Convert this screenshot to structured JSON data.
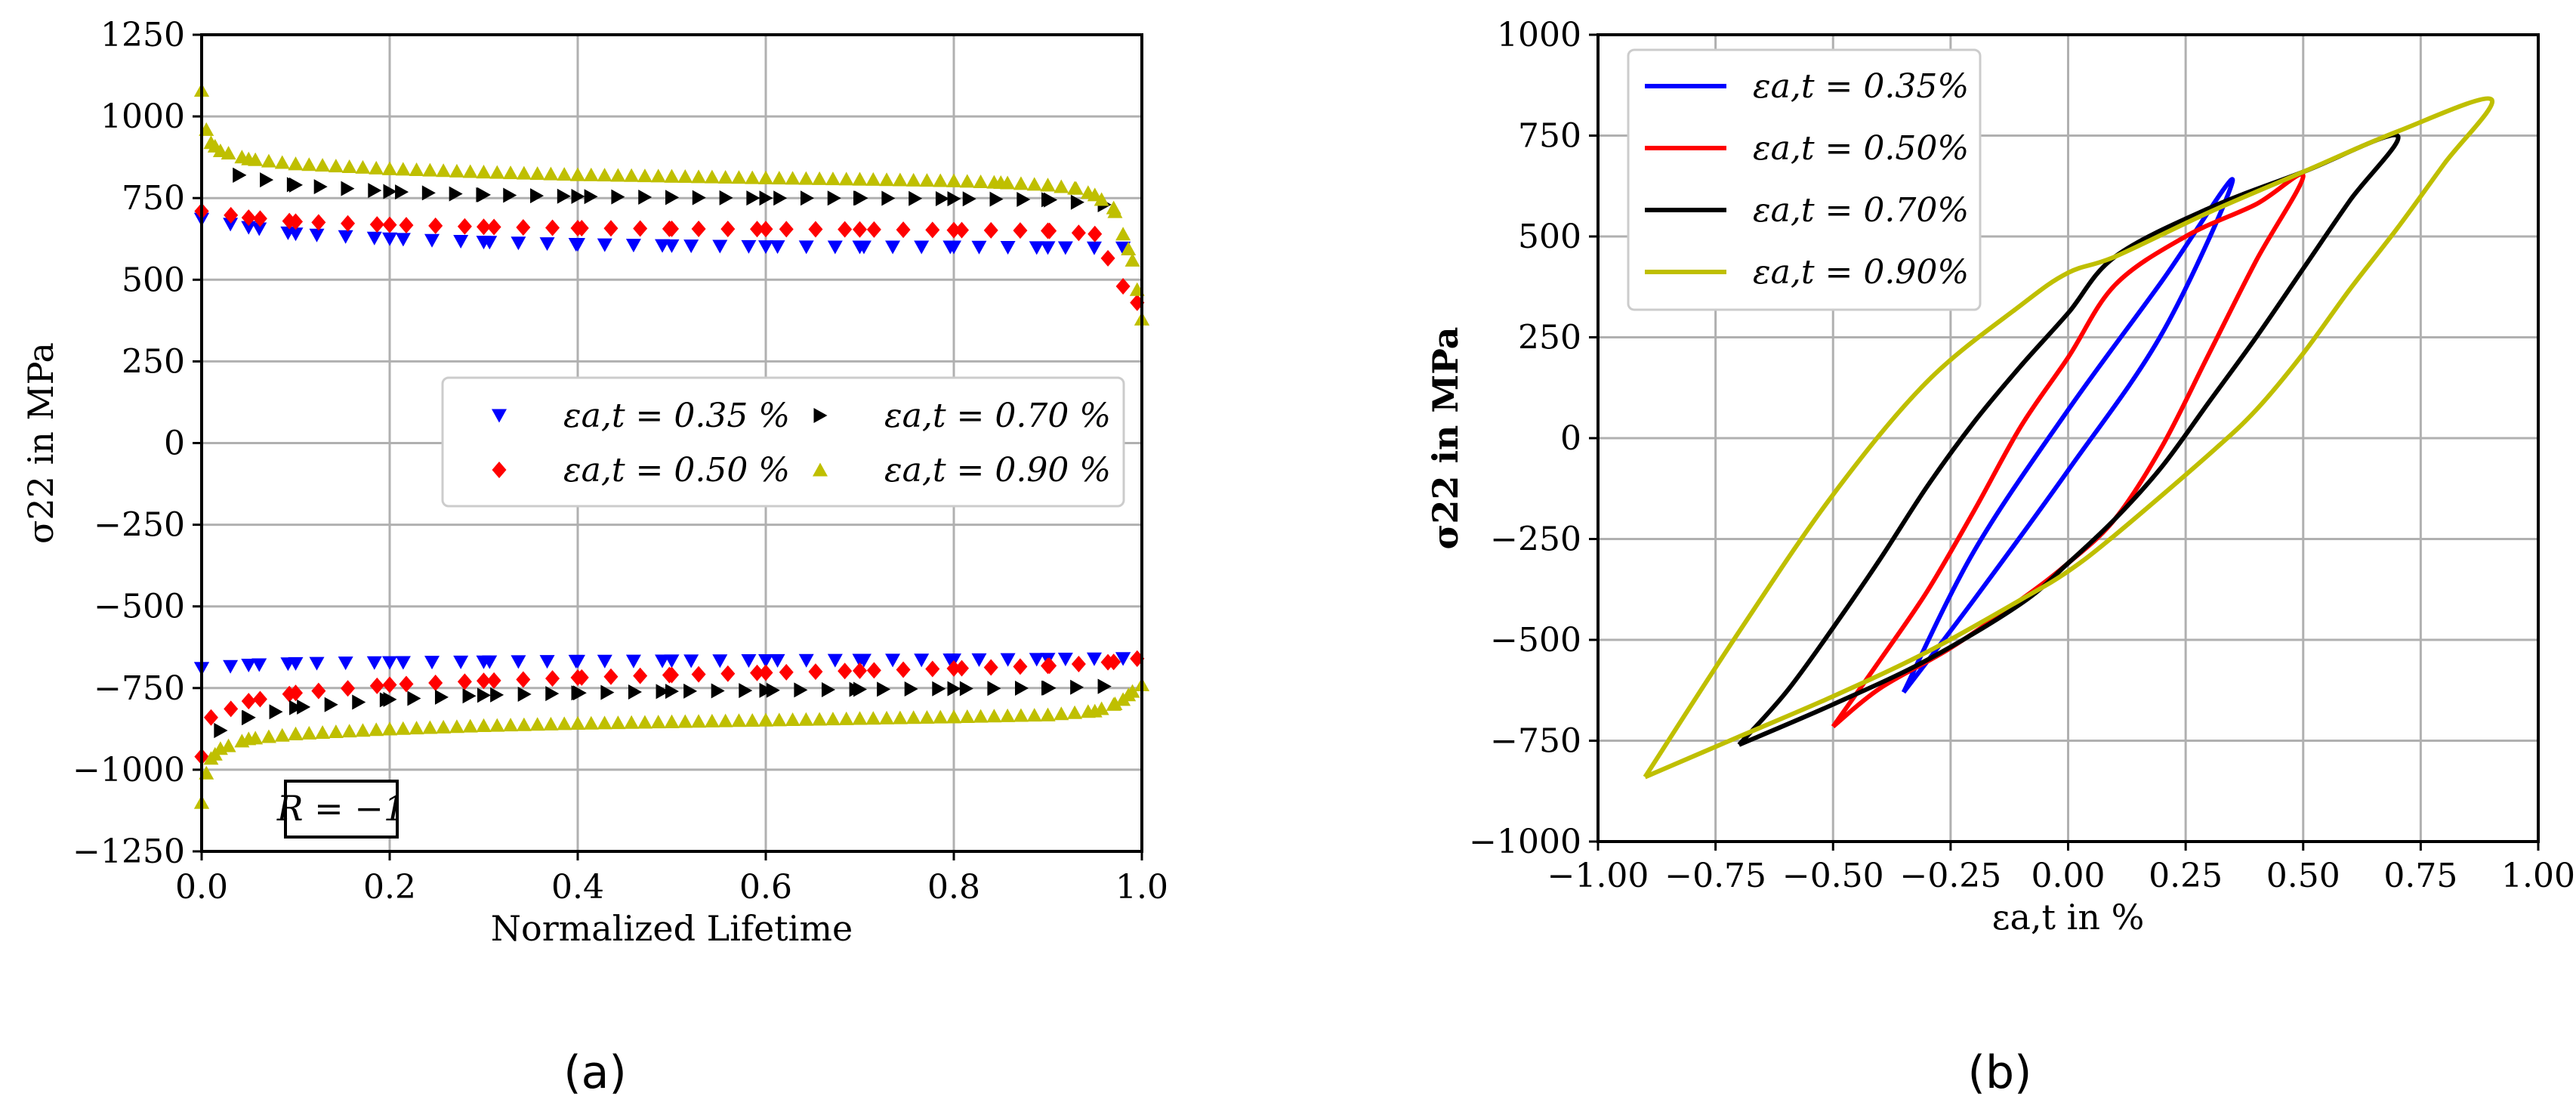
{
  "chart_data": [
    {
      "type": "scatter",
      "panel": "(a)",
      "xlabel": "Normalized Lifetime",
      "ylabel": "σ22 in MPa",
      "xlim": [
        0.0,
        1.0
      ],
      "ylim": [
        -1250,
        1250
      ],
      "xticks": [
        "0.0",
        "0.2",
        "0.4",
        "0.6",
        "0.8",
        "1.0"
      ],
      "yticks": [
        "1250",
        "1000",
        "750",
        "500",
        "250",
        "0",
        "−250",
        "−500",
        "−750",
        "−1000",
        "−1250"
      ],
      "xtick_values": [
        0.0,
        0.2,
        0.4,
        0.6,
        0.8,
        1.0
      ],
      "ytick_values": [
        1250,
        1000,
        750,
        500,
        250,
        0,
        -250,
        -500,
        -750,
        -1000,
        -1250
      ],
      "grid": true,
      "annotation": "R = −1",
      "legend_position": "center-right",
      "series": [
        {
          "name": "εa,t = 0.35 %",
          "color": "#0000ff",
          "marker": "triangle-down",
          "upper": [
            [
              0.0,
              685
            ],
            [
              0.05,
              660
            ],
            [
              0.1,
              640
            ],
            [
              0.2,
              625
            ],
            [
              0.3,
              615
            ],
            [
              0.4,
              608
            ],
            [
              0.5,
              604
            ],
            [
              0.6,
              601
            ],
            [
              0.7,
              600
            ],
            [
              0.8,
              600
            ],
            [
              0.9,
              598
            ],
            [
              0.98,
              597
            ]
          ],
          "lower": [
            [
              0.0,
              -690
            ],
            [
              0.05,
              -680
            ],
            [
              0.1,
              -675
            ],
            [
              0.2,
              -672
            ],
            [
              0.3,
              -670
            ],
            [
              0.4,
              -668
            ],
            [
              0.5,
              -667
            ],
            [
              0.6,
              -666
            ],
            [
              0.7,
              -665
            ],
            [
              0.8,
              -664
            ],
            [
              0.9,
              -662
            ],
            [
              0.98,
              -660
            ]
          ]
        },
        {
          "name": "εa,t = 0.50 %",
          "color": "#ff0000",
          "marker": "diamond",
          "upper": [
            [
              0.0,
              710
            ],
            [
              0.05,
              690
            ],
            [
              0.1,
              678
            ],
            [
              0.2,
              668
            ],
            [
              0.3,
              662
            ],
            [
              0.4,
              658
            ],
            [
              0.5,
              656
            ],
            [
              0.6,
              655
            ],
            [
              0.7,
              654
            ],
            [
              0.8,
              652
            ],
            [
              0.9,
              650
            ],
            [
              0.95,
              640
            ],
            [
              0.98,
              480
            ],
            [
              0.995,
              430
            ]
          ],
          "lower": [
            [
              0.0,
              -960
            ],
            [
              0.01,
              -840
            ],
            [
              0.05,
              -790
            ],
            [
              0.1,
              -765
            ],
            [
              0.2,
              -740
            ],
            [
              0.3,
              -728
            ],
            [
              0.4,
              -718
            ],
            [
              0.5,
              -710
            ],
            [
              0.6,
              -703
            ],
            [
              0.7,
              -697
            ],
            [
              0.8,
              -690
            ],
            [
              0.9,
              -682
            ],
            [
              0.97,
              -670
            ],
            [
              0.995,
              -660
            ]
          ]
        },
        {
          "name": "εa,t = 0.70 %",
          "color": "#000000",
          "marker": "triangle-right",
          "upper": [
            [
              0.04,
              820
            ],
            [
              0.1,
              790
            ],
            [
              0.2,
              770
            ],
            [
              0.3,
              760
            ],
            [
              0.4,
              755
            ],
            [
              0.5,
              752
            ],
            [
              0.6,
              750
            ],
            [
              0.7,
              750
            ],
            [
              0.8,
              748
            ],
            [
              0.9,
              745
            ],
            [
              0.96,
              730
            ]
          ],
          "lower": [
            [
              0.02,
              -880
            ],
            [
              0.05,
              -840
            ],
            [
              0.1,
              -810
            ],
            [
              0.2,
              -785
            ],
            [
              0.3,
              -772
            ],
            [
              0.4,
              -765
            ],
            [
              0.5,
              -760
            ],
            [
              0.6,
              -757
            ],
            [
              0.7,
              -754
            ],
            [
              0.8,
              -752
            ],
            [
              0.9,
              -750
            ],
            [
              0.96,
              -745
            ]
          ]
        },
        {
          "name": "εa,t = 0.90 %",
          "color": "#bfbf00",
          "marker": "triangle-up",
          "upper": [
            [
              0.0,
              1080
            ],
            [
              0.005,
              960
            ],
            [
              0.01,
              920
            ],
            [
              0.02,
              895
            ],
            [
              0.05,
              870
            ],
            [
              0.1,
              855
            ],
            [
              0.2,
              840
            ],
            [
              0.3,
              830
            ],
            [
              0.4,
              822
            ],
            [
              0.5,
              817
            ],
            [
              0.6,
              812
            ],
            [
              0.7,
              808
            ],
            [
              0.8,
              803
            ],
            [
              0.85,
              798
            ],
            [
              0.9,
              790
            ],
            [
              0.93,
              780
            ],
            [
              0.95,
              760
            ],
            [
              0.97,
              720
            ],
            [
              0.98,
              640
            ],
            [
              0.99,
              560
            ],
            [
              0.995,
              470
            ],
            [
              1.0,
              380
            ]
          ],
          "lower": [
            [
              0.0,
              -1100
            ],
            [
              0.005,
              -1010
            ],
            [
              0.01,
              -965
            ],
            [
              0.02,
              -935
            ],
            [
              0.05,
              -905
            ],
            [
              0.1,
              -890
            ],
            [
              0.2,
              -875
            ],
            [
              0.3,
              -865
            ],
            [
              0.4,
              -858
            ],
            [
              0.5,
              -853
            ],
            [
              0.6,
              -848
            ],
            [
              0.7,
              -843
            ],
            [
              0.8,
              -838
            ],
            [
              0.9,
              -832
            ],
            [
              0.95,
              -820
            ],
            [
              0.97,
              -800
            ],
            [
              0.98,
              -785
            ],
            [
              0.99,
              -760
            ],
            [
              1.0,
              -740
            ]
          ]
        }
      ]
    },
    {
      "type": "line",
      "panel": "(b)",
      "xlabel": "εa,t in %",
      "ylabel": "σ22 in MPa",
      "xlim": [
        -1.0,
        1.0
      ],
      "ylim": [
        -1000,
        1000
      ],
      "xticks": [
        "−1.00",
        "−0.75",
        "−0.50",
        "−0.25",
        "0.00",
        "0.25",
        "0.50",
        "0.75",
        "1.00"
      ],
      "yticks": [
        "1000",
        "750",
        "500",
        "250",
        "0",
        "−250",
        "−500",
        "−750",
        "−1000"
      ],
      "xtick_values": [
        -1.0,
        -0.75,
        -0.5,
        -0.25,
        0.0,
        0.25,
        0.5,
        0.75,
        1.0
      ],
      "ytick_values": [
        1000,
        750,
        500,
        250,
        0,
        -250,
        -500,
        -750,
        -1000
      ],
      "grid": true,
      "legend_position": "top-left",
      "series": [
        {
          "name": "εa,t = 0.35%",
          "color": "#0000ff",
          "amplitude_strain": 0.35,
          "points": [
            [
              -0.35,
              -630
            ],
            [
              -0.2,
              -400
            ],
            [
              0.0,
              -80
            ],
            [
              0.2,
              260
            ],
            [
              0.35,
              640
            ],
            [
              0.2,
              390
            ],
            [
              0.0,
              70
            ],
            [
              -0.2,
              -280
            ],
            [
              -0.35,
              -630
            ]
          ]
        },
        {
          "name": "εa,t = 0.50%",
          "color": "#ff0000",
          "amplitude_strain": 0.5,
          "points": [
            [
              -0.5,
              -715
            ],
            [
              -0.4,
              -620
            ],
            [
              -0.25,
              -520
            ],
            [
              -0.1,
              -400
            ],
            [
              0.0,
              -310
            ],
            [
              0.1,
              -200
            ],
            [
              0.2,
              -20
            ],
            [
              0.3,
              210
            ],
            [
              0.4,
              440
            ],
            [
              0.5,
              650
            ],
            [
              0.4,
              580
            ],
            [
              0.25,
              500
            ],
            [
              0.1,
              380
            ],
            [
              0.0,
              200
            ],
            [
              -0.1,
              30
            ],
            [
              -0.2,
              -180
            ],
            [
              -0.3,
              -380
            ],
            [
              -0.4,
              -550
            ],
            [
              -0.5,
              -715
            ]
          ]
        },
        {
          "name": "εa,t = 0.70%",
          "color": "#000000",
          "amplitude_strain": 0.7,
          "points": [
            [
              -0.7,
              -760
            ],
            [
              -0.5,
              -660
            ],
            [
              -0.3,
              -550
            ],
            [
              -0.1,
              -410
            ],
            [
              0.0,
              -310
            ],
            [
              0.1,
              -200
            ],
            [
              0.2,
              -70
            ],
            [
              0.3,
              90
            ],
            [
              0.4,
              250
            ],
            [
              0.5,
              420
            ],
            [
              0.6,
              590
            ],
            [
              0.7,
              750
            ],
            [
              0.5,
              660
            ],
            [
              0.3,
              570
            ],
            [
              0.1,
              450
            ],
            [
              0.0,
              310
            ],
            [
              -0.1,
              180
            ],
            [
              -0.2,
              40
            ],
            [
              -0.3,
              -120
            ],
            [
              -0.4,
              -300
            ],
            [
              -0.5,
              -470
            ],
            [
              -0.6,
              -630
            ],
            [
              -0.7,
              -760
            ]
          ]
        },
        {
          "name": "εa,t = 0.90%",
          "color": "#bfbf00",
          "amplitude_strain": 0.9,
          "points": [
            [
              -0.9,
              -840
            ],
            [
              -0.7,
              -740
            ],
            [
              -0.5,
              -640
            ],
            [
              -0.3,
              -530
            ],
            [
              -0.1,
              -400
            ],
            [
              0.0,
              -330
            ],
            [
              0.1,
              -240
            ],
            [
              0.3,
              -40
            ],
            [
              0.4,
              70
            ],
            [
              0.5,
              210
            ],
            [
              0.6,
              370
            ],
            [
              0.7,
              520
            ],
            [
              0.8,
              680
            ],
            [
              0.9,
              840
            ],
            [
              0.7,
              760
            ],
            [
              0.5,
              660
            ],
            [
              0.3,
              560
            ],
            [
              0.1,
              450
            ],
            [
              0.0,
              410
            ],
            [
              -0.1,
              330
            ],
            [
              -0.3,
              140
            ],
            [
              -0.5,
              -140
            ],
            [
              -0.7,
              -480
            ],
            [
              -0.9,
              -840
            ]
          ]
        }
      ]
    }
  ]
}
